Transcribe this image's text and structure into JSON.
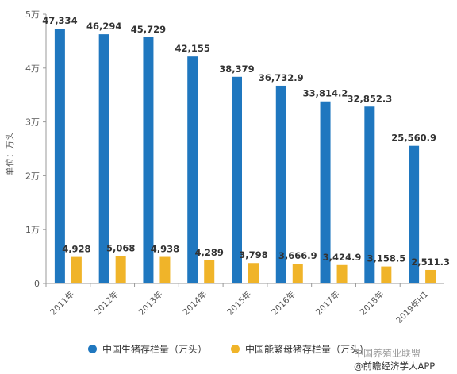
{
  "chart_data": {
    "type": "bar",
    "ylabel": "单位：万头",
    "ylim": [
      0,
      50000
    ],
    "yticks": [
      {
        "value": 0,
        "label": "0"
      },
      {
        "value": 10000,
        "label": "1万"
      },
      {
        "value": 20000,
        "label": "2万"
      },
      {
        "value": 30000,
        "label": "3万"
      },
      {
        "value": 40000,
        "label": "4万"
      },
      {
        "value": 50000,
        "label": "5万"
      }
    ],
    "categories": [
      "2011年",
      "2012年",
      "2013年",
      "2014年",
      "2015年",
      "2016年",
      "2017年",
      "2018年",
      "2019年H1"
    ],
    "series": [
      {
        "name": "中国生猪存栏量（万头）",
        "color": "#1f77bf",
        "values": [
          47334,
          46294,
          45729,
          42155,
          38379,
          36732.9,
          33814.2,
          32852.3,
          25560.9
        ],
        "labels": [
          "47,334",
          "46,294",
          "45,729",
          "42,155",
          "38,379",
          "36,732.9",
          "33,814.2",
          "32,852.3",
          "25,560.9"
        ]
      },
      {
        "name": "中国能繁母猪存栏量（万头）",
        "color": "#f0b429",
        "values": [
          4928,
          5068,
          4938,
          4289,
          3798,
          3666.9,
          3424.9,
          3158.5,
          2511.3
        ],
        "labels": [
          "4,928",
          "5,068",
          "4,938",
          "4,289",
          "3,798",
          "3,666.9",
          "3,424.9",
          "3,158.5",
          "2,511.3"
        ]
      }
    ],
    "legend_position": "bottom",
    "grid": false
  },
  "watermark": {
    "line1": "中国养殖业联盟",
    "line2": "@前瞻经济学人APP"
  }
}
